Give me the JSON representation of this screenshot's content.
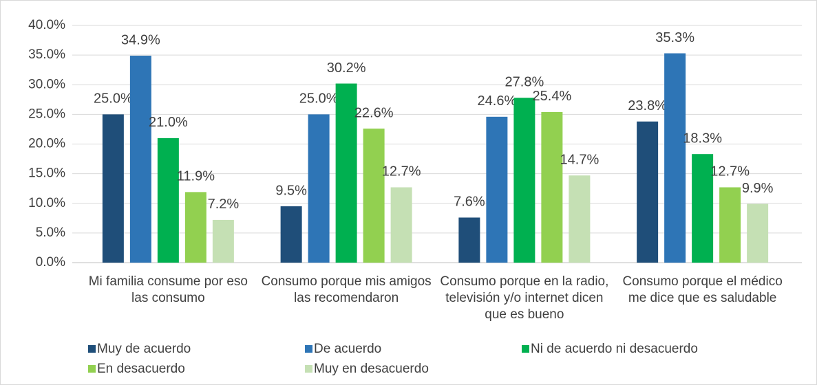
{
  "chart_data": {
    "type": "bar",
    "categories": [
      "Mi familia consume por eso las consumo",
      "Consumo porque mis amigos las recomendaron",
      "Consumo porque en la radio, televisión y/o internet dicen que es bueno",
      "Consumo porque el médico me dice que es saludable"
    ],
    "series": [
      {
        "name": "Muy de acuerdo",
        "color": "#1f4e79",
        "values": [
          25.0,
          9.5,
          7.6,
          23.8
        ],
        "value_labels": [
          "25.0%",
          "9.5%",
          "7.6%",
          "23.8%"
        ]
      },
      {
        "name": "De acuerdo",
        "color": "#2e75b6",
        "values": [
          34.9,
          25.0,
          24.6,
          35.3
        ],
        "value_labels": [
          "34.9%",
          "25.0%",
          "24.6%",
          "35.3%"
        ]
      },
      {
        "name": "Ni de acuerdo ni desacuerdo",
        "color": "#00b050",
        "values": [
          21.0,
          30.2,
          27.8,
          18.3
        ],
        "value_labels": [
          "21.0%",
          "30.2%",
          "27.8%",
          "18.3%"
        ]
      },
      {
        "name": "En desacuerdo",
        "color": "#92d050",
        "values": [
          11.9,
          22.6,
          25.4,
          12.7
        ],
        "value_labels": [
          "11.9%",
          "22.6%",
          "25.4%",
          "12.7%"
        ]
      },
      {
        "name": "Muy en desacuerdo",
        "color": "#c5e0b4",
        "values": [
          7.2,
          12.7,
          14.7,
          9.9
        ],
        "value_labels": [
          "7.2%",
          "12.7%",
          "14.7%",
          "9.9%"
        ]
      }
    ],
    "ylim": [
      0,
      40
    ],
    "yticks": [
      {
        "value": 0,
        "label": "0.0%"
      },
      {
        "value": 5,
        "label": "5.0%"
      },
      {
        "value": 10,
        "label": "10.0%"
      },
      {
        "value": 15,
        "label": "15.0%"
      },
      {
        "value": 20,
        "label": "20.0%"
      },
      {
        "value": 25,
        "label": "25.0%"
      },
      {
        "value": 30,
        "label": "30.0%"
      },
      {
        "value": 35,
        "label": "35.0%"
      },
      {
        "value": 40,
        "label": "40.0%"
      }
    ],
    "grid": true,
    "legend": "bottom"
  }
}
